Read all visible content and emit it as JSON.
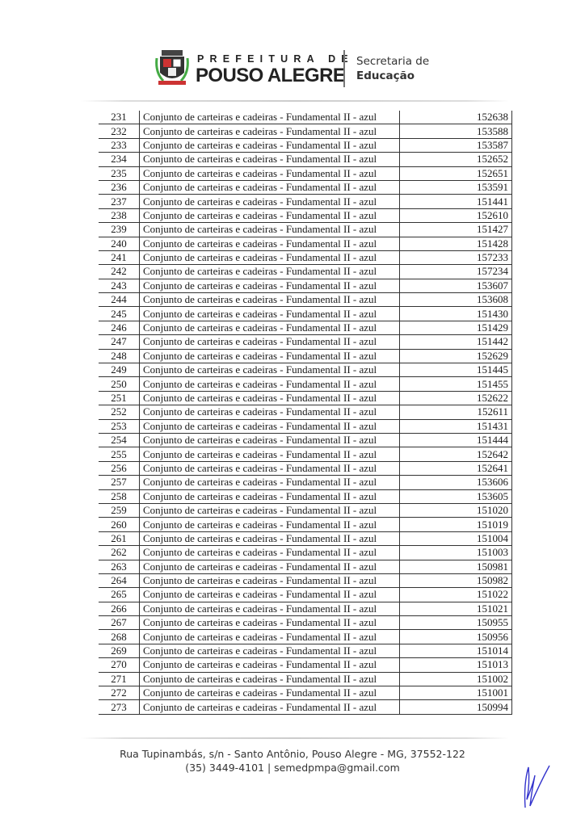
{
  "header": {
    "prefix": "PREFEITURA DE",
    "city": "POUSO ALEGRE",
    "department_line1": "Secretaria de",
    "department_line2": "Educação"
  },
  "table": {
    "description": "Conjunto de carteiras e cadeiras - Fundamental II - azul",
    "rows": [
      {
        "n": "231",
        "code": "152638"
      },
      {
        "n": "232",
        "code": "153588"
      },
      {
        "n": "233",
        "code": "153587"
      },
      {
        "n": "234",
        "code": "152652"
      },
      {
        "n": "235",
        "code": "152651"
      },
      {
        "n": "236",
        "code": "153591"
      },
      {
        "n": "237",
        "code": "151441"
      },
      {
        "n": "238",
        "code": "152610"
      },
      {
        "n": "239",
        "code": "151427"
      },
      {
        "n": "240",
        "code": "151428"
      },
      {
        "n": "241",
        "code": "157233"
      },
      {
        "n": "242",
        "code": "157234"
      },
      {
        "n": "243",
        "code": "153607"
      },
      {
        "n": "244",
        "code": "153608"
      },
      {
        "n": "245",
        "code": "151430"
      },
      {
        "n": "246",
        "code": "151429"
      },
      {
        "n": "247",
        "code": "151442"
      },
      {
        "n": "248",
        "code": "152629"
      },
      {
        "n": "249",
        "code": "151445"
      },
      {
        "n": "250",
        "code": "151455"
      },
      {
        "n": "251",
        "code": "152622"
      },
      {
        "n": "252",
        "code": "152611"
      },
      {
        "n": "253",
        "code": "151431"
      },
      {
        "n": "254",
        "code": "151444"
      },
      {
        "n": "255",
        "code": "152642"
      },
      {
        "n": "256",
        "code": "152641"
      },
      {
        "n": "257",
        "code": "153606"
      },
      {
        "n": "258",
        "code": "153605"
      },
      {
        "n": "259",
        "code": "151020"
      },
      {
        "n": "260",
        "code": "151019"
      },
      {
        "n": "261",
        "code": "151004"
      },
      {
        "n": "262",
        "code": "151003"
      },
      {
        "n": "263",
        "code": "150981"
      },
      {
        "n": "264",
        "code": "150982"
      },
      {
        "n": "265",
        "code": "151022"
      },
      {
        "n": "266",
        "code": "151021"
      },
      {
        "n": "267",
        "code": "150955"
      },
      {
        "n": "268",
        "code": "150956"
      },
      {
        "n": "269",
        "code": "151014"
      },
      {
        "n": "270",
        "code": "151013"
      },
      {
        "n": "271",
        "code": "151002"
      },
      {
        "n": "272",
        "code": "151001"
      },
      {
        "n": "273",
        "code": "150994"
      }
    ]
  },
  "footer": {
    "address": "Rua Tupinambás, s/n - Santo Antônio, Pouso Alegre - MG, 37552-122",
    "contact": "(35) 3449-4101 | semedpmpa@gmail.com"
  }
}
